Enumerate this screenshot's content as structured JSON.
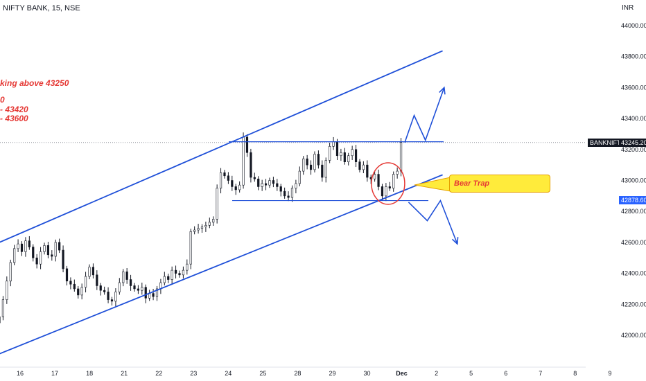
{
  "header": {
    "title": "NIFTY BANK, 15, NSE",
    "currency": "INR"
  },
  "annotations": [
    "king above 43250",
    "0",
    "- 43420",
    "- 43600"
  ],
  "callout": {
    "text": "Bear Trap",
    "fill": "#ffeb3b",
    "text_color": "#e53935"
  },
  "symbol_tag": {
    "name": "BANKNIFTY",
    "price": "43245.20"
  },
  "price_badge": {
    "price": "42878.60",
    "color": "#2962ff"
  },
  "colors": {
    "line": "#1e4fd8",
    "candle": "#131722",
    "annotation": "#e53935",
    "circle": "#e53935"
  },
  "chart_data": {
    "type": "candlestick",
    "symbol": "NIFTY BANK",
    "interval": "15",
    "exchange": "NSE",
    "y_ticks": [
      42000,
      42200,
      42400,
      42600,
      42800,
      43000,
      43200,
      43400,
      43600,
      43800,
      44000
    ],
    "y_tick_labels": [
      "42000.00",
      "42200.00",
      "42400.00",
      "42600.00",
      "42800.00",
      "43000.00",
      "43200.00",
      "43400.00",
      "43600.00",
      "43800.00",
      "44000.00"
    ],
    "ylim": [
      41860,
      44180
    ],
    "x_ticks": [
      "16",
      "17",
      "18",
      "21",
      "22",
      "23",
      "24",
      "25",
      "28",
      "29",
      "30",
      "Dec",
      "2",
      "5",
      "6",
      "7",
      "8",
      "9"
    ],
    "x_tick_session": [
      0,
      1,
      2,
      3,
      4,
      5,
      6,
      7,
      8,
      9,
      10,
      11,
      12,
      13,
      14,
      15,
      16,
      17
    ],
    "session_bars": 25,
    "last_price": 43245.2,
    "closes": [
      42120,
      42230,
      42350,
      42470,
      42560,
      42590,
      42540,
      42610,
      42570,
      42500,
      42460,
      42540,
      42580,
      42520,
      42510,
      42600,
      42550,
      42430,
      42350,
      42330,
      42300,
      42260,
      42310,
      42380,
      42440,
      42390,
      42320,
      42290,
      42280,
      42230,
      42220,
      42280,
      42340,
      42410,
      42360,
      42320,
      42300,
      42290,
      42310,
      42240,
      42270,
      42250,
      42300,
      42340,
      42380,
      42360,
      42420,
      42400,
      42390,
      42420,
      42460,
      42670,
      42680,
      42690,
      42700,
      42710,
      42730,
      42750,
      42950,
      43050,
      43030,
      43000,
      42960,
      42940,
      42970,
      43280,
      43180,
      43020,
      43010,
      42960,
      42980,
      42970,
      43000,
      42980,
      42960,
      42930,
      42900,
      42890,
      42950,
      42980,
      43060,
      43140,
      43100,
      43070,
      43170,
      43100,
      43020,
      43130,
      43220,
      43250,
      43160,
      43180,
      43120,
      43160,
      43200,
      43120,
      43070,
      43100,
      43020,
      43010,
      43040,
      42960,
      42900,
      42960,
      42950,
      43040,
      43060,
      43245
    ],
    "channel_upper": [
      [
        0,
        42600
      ],
      [
        107,
        43980
      ]
    ],
    "channel_lower": [
      [
        0,
        41880
      ],
      [
        107,
        43170
      ]
    ],
    "range_top": 43250,
    "range_bottom": 42870,
    "bear_trap_circle": {
      "session": 103,
      "price": 42980
    },
    "projection_up": [
      [
        108,
        43245
      ],
      [
        110.5,
        43420
      ],
      [
        113.5,
        43260
      ],
      [
        118.5,
        43600
      ]
    ],
    "projection_down": [
      [
        109,
        42860
      ],
      [
        114,
        42740
      ],
      [
        117.5,
        42870
      ],
      [
        122,
        42590
      ]
    ]
  }
}
